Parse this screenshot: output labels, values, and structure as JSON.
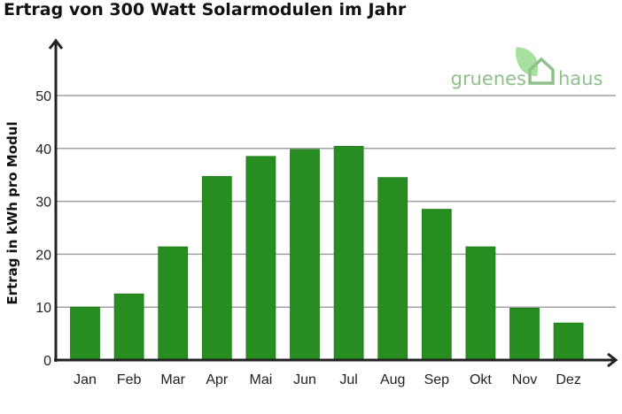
{
  "chart_data": {
    "type": "bar",
    "title": "Ertrag von 300 Watt Solarmodulen im Jahr",
    "xlabel": "",
    "ylabel": "Ertrag in kWh pro Modul",
    "categories": [
      "Jan",
      "Feb",
      "Mar",
      "Apr",
      "Mai",
      "Jun",
      "Jul",
      "Aug",
      "Sep",
      "Okt",
      "Nov",
      "Dez"
    ],
    "values": [
      10,
      12.5,
      21.4,
      34.7,
      38.5,
      39.8,
      40.4,
      34.5,
      28.5,
      21.4,
      9.8,
      7.0
    ],
    "ylim": [
      0,
      50
    ],
    "yticks": [
      0,
      10,
      20,
      30,
      40,
      50
    ],
    "grid": true,
    "bar_color": "#278d20",
    "grid_color": "#a0a0a0"
  },
  "logo": {
    "left": "gruenes",
    "right": "haus",
    "color": "#8fbf8a",
    "leaf_color": "#a8e0a0"
  }
}
